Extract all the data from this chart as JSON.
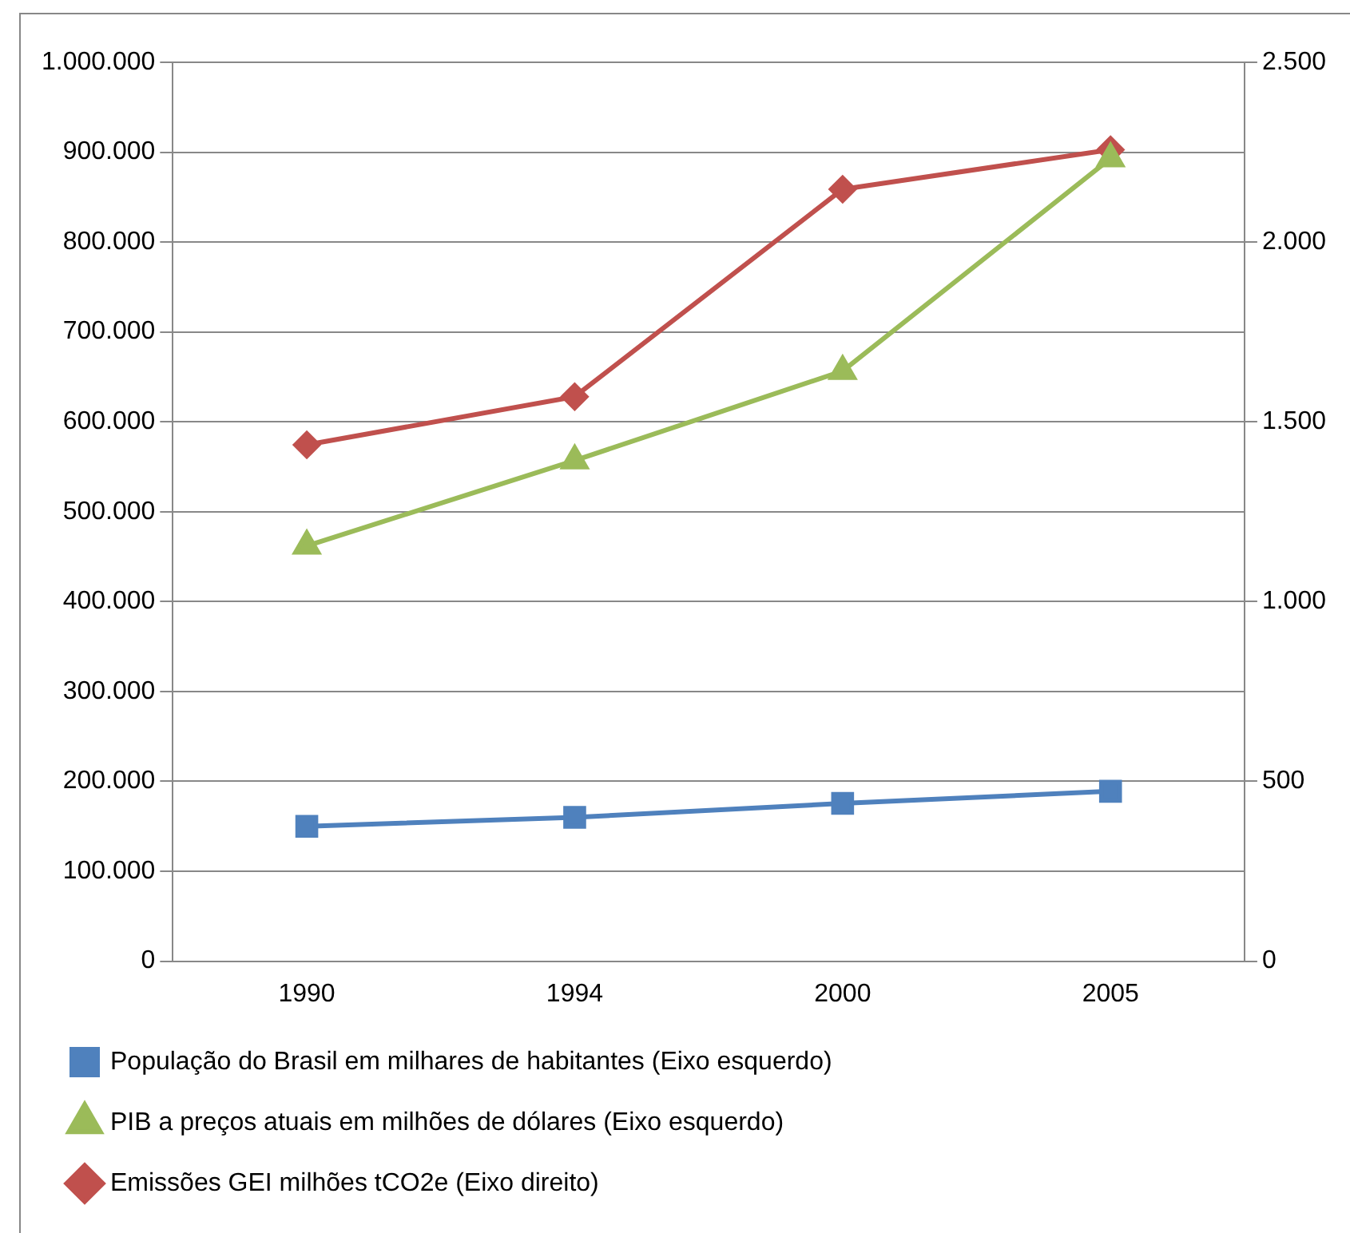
{
  "chart_data": {
    "type": "line",
    "categories": [
      "1990",
      "1994",
      "2000",
      "2005"
    ],
    "series": [
      {
        "name": "População do Brasil em milhares de habitantes (Eixo esquerdo)",
        "color": "#4f81bd",
        "marker": "square",
        "values": [
          150000,
          160000,
          175500,
          189000
        ]
      },
      {
        "name": "PIB a preços atuais em milhões de dólares (Eixo esquerdo)",
        "color": "#9bbb59",
        "marker": "triangle",
        "values": [
          462000,
          557000,
          656500,
          893000
        ]
      },
      {
        "name": "Emissões GEI milhões tCO2e (Eixo direito)",
        "color": "#c0504d",
        "marker": "diamond",
        "axis": "y2",
        "values": [
          1436,
          1570,
          2147,
          2257
        ]
      }
    ],
    "ylim": [
      0,
      1000000
    ],
    "yticks": [
      0,
      {
        "value": 100000,
        "label": "100.000"
      },
      {
        "value": 200000,
        "label": "200.000"
      },
      {
        "value": 300000,
        "label": "300.000"
      },
      {
        "value": 400000,
        "label": "400.000"
      },
      {
        "value": 500000,
        "label": "500.000"
      },
      {
        "value": 600000,
        "label": "600.000"
      },
      {
        "value": 700000,
        "label": "700.000"
      },
      {
        "value": 800000,
        "label": "800.000"
      },
      {
        "value": 900000,
        "label": "900.000"
      },
      {
        "value": 1000000,
        "label": "1.000.000"
      }
    ],
    "y2lim": [
      0,
      2500
    ],
    "y2ticks": [
      0,
      500,
      {
        "value": 1000,
        "label": "1.000"
      },
      {
        "value": 1500,
        "label": "1.500"
      },
      {
        "value": 2000,
        "label": "2.000"
      },
      {
        "value": 2500,
        "label": "2.500"
      }
    ],
    "grid": "y",
    "legend": "bottom",
    "line_style": "solid"
  }
}
